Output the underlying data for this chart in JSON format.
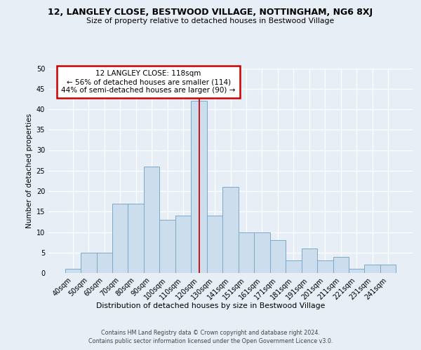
{
  "title": "12, LANGLEY CLOSE, BESTWOOD VILLAGE, NOTTINGHAM, NG6 8XJ",
  "subtitle": "Size of property relative to detached houses in Bestwood Village",
  "xlabel": "Distribution of detached houses by size in Bestwood Village",
  "ylabel": "Number of detached properties",
  "bar_labels": [
    "40sqm",
    "50sqm",
    "60sqm",
    "70sqm",
    "80sqm",
    "90sqm",
    "100sqm",
    "110sqm",
    "120sqm",
    "130sqm",
    "141sqm",
    "151sqm",
    "161sqm",
    "171sqm",
    "181sqm",
    "191sqm",
    "201sqm",
    "211sqm",
    "221sqm",
    "231sqm",
    "241sqm"
  ],
  "bar_values": [
    1,
    5,
    5,
    17,
    17,
    26,
    13,
    14,
    42,
    14,
    21,
    10,
    10,
    8,
    3,
    6,
    3,
    4,
    1,
    2,
    2
  ],
  "bar_color": "#ccdded",
  "bar_edge_color": "#7aaac8",
  "vline_index": 8,
  "vline_color": "#cc0000",
  "annotation_text": "12 LANGLEY CLOSE: 118sqm\n← 56% of detached houses are smaller (114)\n44% of semi-detached houses are larger (90) →",
  "annotation_box_color": "#ffffff",
  "annotation_box_edge": "#cc0000",
  "ylim": [
    0,
    50
  ],
  "yticks": [
    0,
    5,
    10,
    15,
    20,
    25,
    30,
    35,
    40,
    45,
    50
  ],
  "footer_line1": "Contains HM Land Registry data © Crown copyright and database right 2024.",
  "footer_line2": "Contains public sector information licensed under the Open Government Licence v3.0.",
  "bg_color": "#e8eef6",
  "grid_color": "#c8d4e4"
}
